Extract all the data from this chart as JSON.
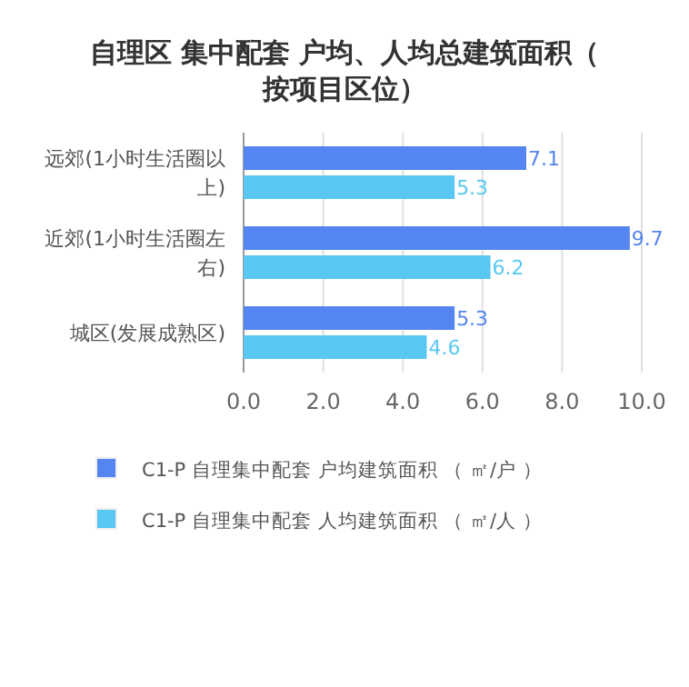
{
  "chart_data": {
    "type": "bar",
    "orientation": "horizontal",
    "title": "自理区 集中配套 户均、人均总建筑面积（按项目区位）",
    "categories": [
      "远郊(1小时生活圈以上)",
      "近郊(1小时生活圈左右)",
      "城区(发展成熟区)"
    ],
    "series": [
      {
        "name": "C1-P 自理集中配套 户均建筑面积 （ ㎡/户 ）",
        "color": "#5585f0",
        "values": [
          7.1,
          9.7,
          5.3
        ]
      },
      {
        "name": "C1-P 自理集中配套 人均建筑面积 （ ㎡/人 ）",
        "color": "#58c8f2",
        "values": [
          5.3,
          6.2,
          4.6
        ]
      }
    ],
    "xlim": [
      0,
      10
    ],
    "xticks": [
      {
        "value": 0,
        "label": "0.0"
      },
      {
        "value": 2,
        "label": "2.0"
      },
      {
        "value": 4,
        "label": "4.0"
      },
      {
        "value": 6,
        "label": "6.0"
      },
      {
        "value": 8,
        "label": "8.0"
      },
      {
        "value": 10,
        "label": "10.0"
      }
    ],
    "grid": "x",
    "legend": "bottom",
    "data_labels": true
  }
}
